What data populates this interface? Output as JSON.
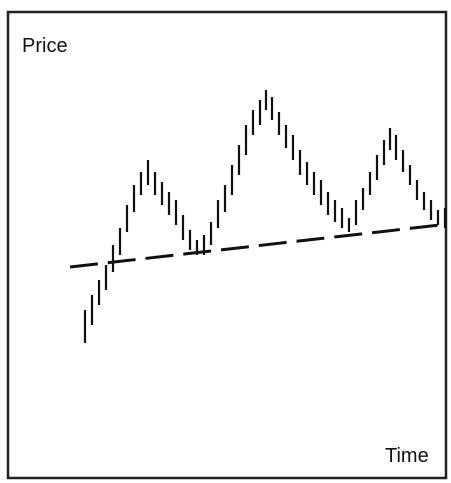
{
  "axes": {
    "y_label": "Price",
    "x_label": "Time"
  }
}
